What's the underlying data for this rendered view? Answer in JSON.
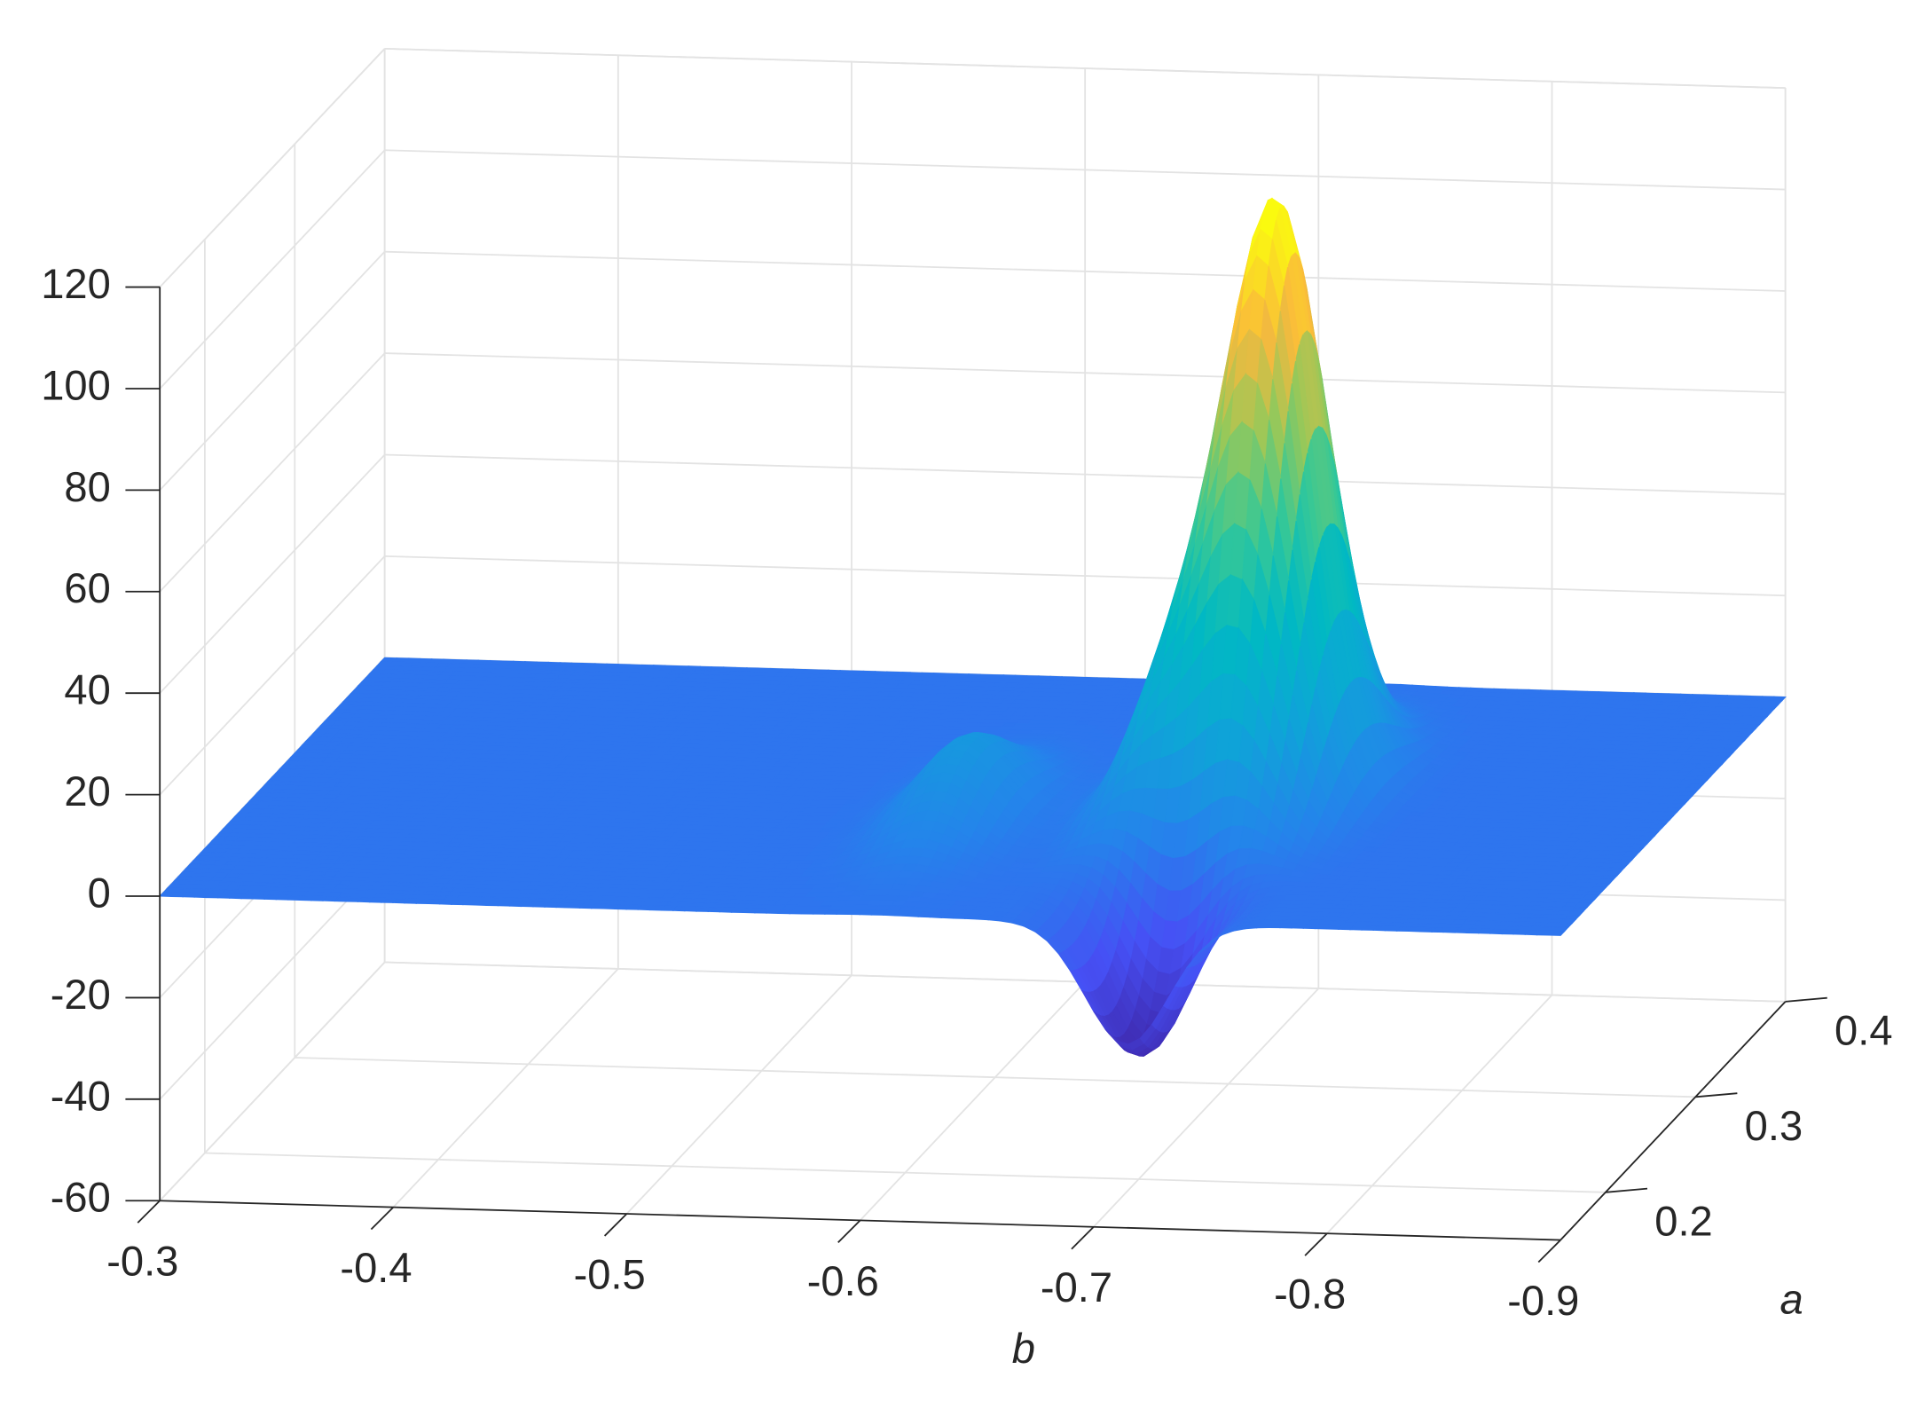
{
  "chart_data": {
    "type": "surface",
    "xlabel": "b",
    "ylabel": "a",
    "xlim": [
      -0.3,
      -0.9
    ],
    "xticks": [
      -0.3,
      -0.4,
      -0.5,
      -0.6,
      -0.7,
      -0.8,
      -0.9
    ],
    "ylim": [
      0.15,
      0.4
    ],
    "yticks": [
      0.2,
      0.3,
      0.4
    ],
    "zlim": [
      -60,
      120
    ],
    "zticks": [
      -60,
      -40,
      -20,
      0,
      20,
      40,
      60,
      80,
      100,
      120
    ],
    "grid": true,
    "colormap": "parula",
    "peaks": [
      {
        "b": -0.728,
        "a": 0.281,
        "z": 114
      },
      {
        "b": -0.714,
        "a": 0.175,
        "z": -31
      },
      {
        "b": -0.694,
        "a": 0.262,
        "z": 31.5
      },
      {
        "b": -0.606,
        "a": 0.25,
        "z": 16
      }
    ]
  }
}
